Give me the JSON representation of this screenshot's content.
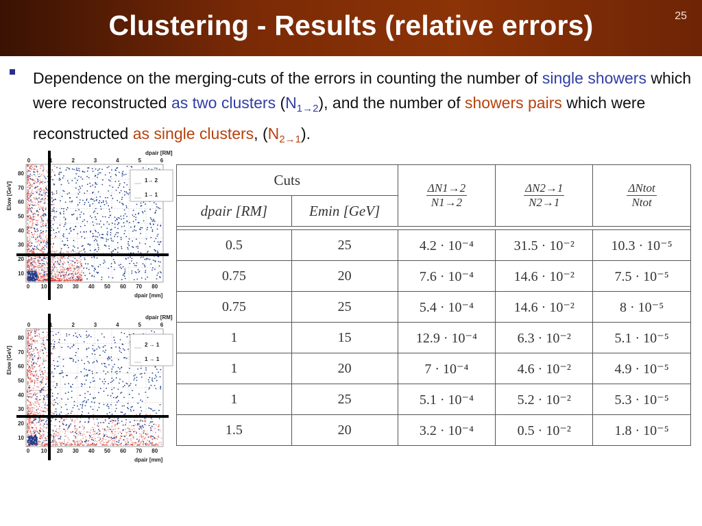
{
  "slide": {
    "title": "Clustering - Results (relative errors)",
    "number": "25"
  },
  "bullet": {
    "t1": "Dependence on the merging-cuts of the errors in counting the number of ",
    "t2": "single showers",
    "t3": " which were reconstructed ",
    "t4": "as two clusters",
    "t5": " (",
    "t6": "N",
    "t6sub": "1→2",
    "t7": "), and the number of ",
    "t8": "showers pairs",
    "t9": " which were reconstructed ",
    "t10": "as single clusters",
    "t11": ", (",
    "t12": "N",
    "t12sub": "2→1",
    "t13": ")."
  },
  "plots": [
    {
      "legend": [
        "1→ 2",
        "1→ 1"
      ],
      "top_axis_label": "dpair [RM]",
      "top_ticks": [
        "0",
        "1",
        "2",
        "3",
        "4",
        "5",
        "6"
      ],
      "bottom_axis_label": "dpair [mm]",
      "bottom_ticks": [
        "0",
        "10",
        "20",
        "30",
        "40",
        "50",
        "60",
        "70",
        "80"
      ],
      "y_axis_label": "Elow [GeV]",
      "y_ticks": [
        "80",
        "70",
        "60",
        "50",
        "40",
        "30",
        "20",
        "10"
      ]
    },
    {
      "legend": [
        "2 → 1",
        "1 → 1"
      ],
      "top_axis_label": "dpair [RM]",
      "top_ticks": [
        "0",
        "1",
        "2",
        "3",
        "4",
        "5",
        "6"
      ],
      "bottom_axis_label": "dpair [mm]",
      "bottom_ticks": [
        "0",
        "10",
        "20",
        "30",
        "40",
        "50",
        "60",
        "70",
        "80"
      ],
      "y_axis_label": "Elow [GeV]",
      "y_ticks": [
        "80",
        "70",
        "60",
        "50",
        "40",
        "30",
        "20",
        "10"
      ]
    }
  ],
  "table": {
    "cuts_label": "Cuts",
    "col_dpair": "dpair [RM]",
    "col_emin": "Emin [GeV]",
    "col3_num": "ΔN1→2",
    "col3_den": "N1→2",
    "col4_num": "ΔN2→1",
    "col4_den": "N2→1",
    "col5_num": "ΔNtot",
    "col5_den": "Ntot",
    "rows": [
      {
        "dpair": "0.5",
        "emin": "25",
        "e12": "4.2 · 10⁻⁴",
        "e21": "31.5 · 10⁻²",
        "etot": "10.3 · 10⁻⁵"
      },
      {
        "dpair": "0.75",
        "emin": "20",
        "e12": "7.6 · 10⁻⁴",
        "e21": "14.6 · 10⁻²",
        "etot": "7.5 · 10⁻⁵"
      },
      {
        "dpair": "0.75",
        "emin": "25",
        "e12": "5.4 · 10⁻⁴",
        "e21": "14.6 · 10⁻²",
        "etot": "8 · 10⁻⁵"
      },
      {
        "dpair": "1",
        "emin": "15",
        "e12": "12.9 · 10⁻⁴",
        "e21": "6.3 · 10⁻²",
        "etot": "5.1 · 10⁻⁵"
      },
      {
        "dpair": "1",
        "emin": "20",
        "e12": "7 · 10⁻⁴",
        "e21": "4.6 · 10⁻²",
        "etot": "4.9 · 10⁻⁵"
      },
      {
        "dpair": "1",
        "emin": "25",
        "e12": "5.1 · 10⁻⁴",
        "e21": "5.2 · 10⁻²",
        "etot": "5.3 · 10⁻⁵"
      },
      {
        "dpair": "1.5",
        "emin": "20",
        "e12": "3.2 · 10⁻⁴",
        "e21": "0.5 · 10⁻²",
        "etot": "1.8 · 10⁻⁵"
      }
    ]
  },
  "colors": {
    "banner": "#7a2a06",
    "blue_text": "#2f3da3",
    "orange_text": "#b6420c",
    "scatter_blue": "#1f3f8f",
    "scatter_red": "#d63a30"
  }
}
